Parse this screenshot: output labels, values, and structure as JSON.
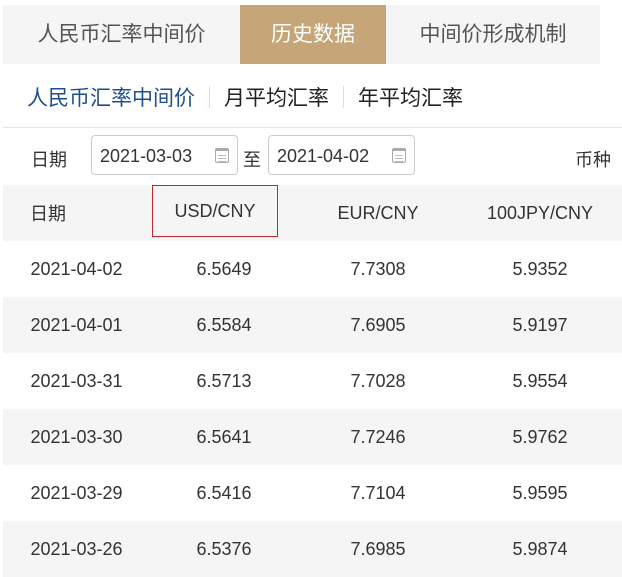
{
  "tabs": [
    {
      "label": "人民币汇率中间价"
    },
    {
      "label": "历史数据",
      "active": true
    },
    {
      "label": "中间价形成机制"
    }
  ],
  "subtabs": [
    {
      "label": "人民币汇率中间价",
      "active": true
    },
    {
      "label": "月平均汇率"
    },
    {
      "label": "年平均汇率"
    }
  ],
  "filter": {
    "date_label": "日期",
    "start": "2021-03-03",
    "to": "至",
    "end": "2021-04-02",
    "currency_label": "币种"
  },
  "colors": {
    "active_tab": "#c6a679",
    "active_subtab": "#1f4e8c",
    "highlight_border": "#c0262d"
  },
  "table": {
    "headers": [
      "日期",
      "USD/CNY",
      "EUR/CNY",
      "100JPY/CNY"
    ],
    "rows": [
      [
        "2021-04-02",
        "6.5649",
        "7.7308",
        "5.9352"
      ],
      [
        "2021-04-01",
        "6.5584",
        "7.6905",
        "5.9197"
      ],
      [
        "2021-03-31",
        "6.5713",
        "7.7028",
        "5.9554"
      ],
      [
        "2021-03-30",
        "6.5641",
        "7.7246",
        "5.9762"
      ],
      [
        "2021-03-29",
        "6.5416",
        "7.7104",
        "5.9595"
      ],
      [
        "2021-03-26",
        "6.5376",
        "7.6985",
        "5.9874"
      ]
    ]
  }
}
